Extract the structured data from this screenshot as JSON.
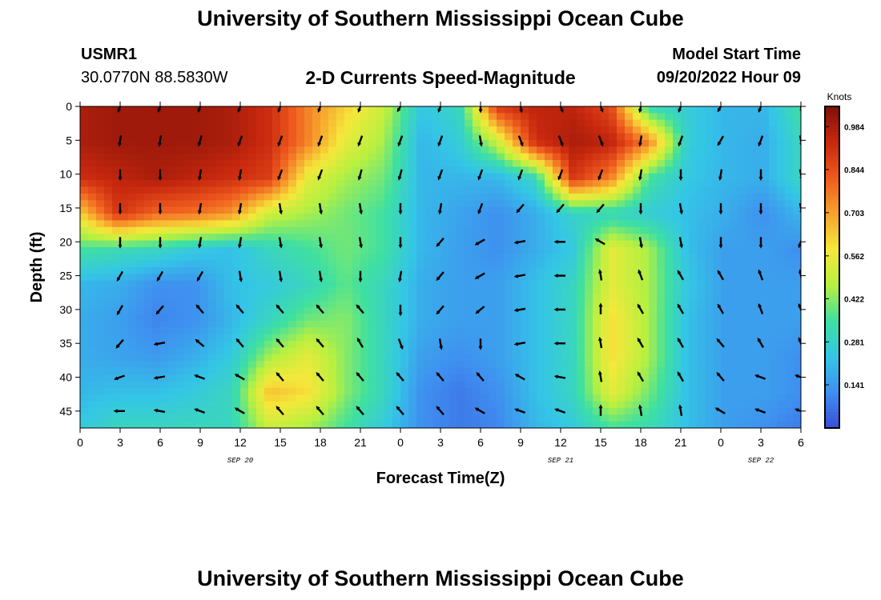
{
  "header": {
    "title": "University of Southern Mississippi Ocean Cube",
    "station_id": "USMR1",
    "station_coords": "30.0770N  88.5830W",
    "plot_title": "2-D Currents Speed-Magnitude",
    "model_start_label": "Model Start Time",
    "model_start_value": "09/20/2022 Hour 09"
  },
  "footer": {
    "title": "University of Southern Mississippi Ocean Cube"
  },
  "chart_data": {
    "type": "heatmap",
    "xlabel": "Forecast Time(Z)",
    "ylabel": "Depth (ft)",
    "colorbar_label": "Knots",
    "x_tick_labels": [
      "0",
      "3",
      "6",
      "9",
      "12",
      "15",
      "18",
      "21",
      "0",
      "3",
      "6",
      "9",
      "12",
      "15",
      "18",
      "21",
      "0",
      "3",
      "6"
    ],
    "date_labels": [
      {
        "text": "SEP 20",
        "at_tick": 4
      },
      {
        "text": "SEP 21",
        "at_tick": 12
      },
      {
        "text": "SEP 22",
        "at_tick": 17
      }
    ],
    "y_ticks": [
      0,
      5,
      10,
      15,
      20,
      25,
      30,
      35,
      40,
      45
    ],
    "ylim": [
      0,
      47.5
    ],
    "colorbar_ticks": [
      0.141,
      0.281,
      0.422,
      0.562,
      0.703,
      0.844,
      0.984
    ],
    "colorbar_range": [
      0.0,
      1.05
    ],
    "colormap": [
      "#3a4fd8",
      "#3f8ff0",
      "#34c6e6",
      "#3fe0a0",
      "#b8f040",
      "#f5e83a",
      "#f7a22e",
      "#ee5a1e",
      "#c8280e",
      "#801008"
    ],
    "grid": false,
    "vector_depths": [
      0,
      5,
      10,
      15,
      20,
      25,
      30,
      35,
      40,
      45
    ],
    "vector_times": [
      1,
      2,
      3,
      4,
      5,
      6,
      7,
      8,
      9,
      10,
      11,
      12,
      13,
      14,
      15,
      16,
      17,
      18
    ],
    "speed_grid": [
      [
        0.98,
        1.0,
        1.0,
        1.0,
        0.98,
        0.92,
        0.75,
        0.62,
        0.5,
        0.24,
        0.3,
        0.9,
        0.95,
        0.95,
        0.85,
        0.3,
        0.26,
        0.2,
        0.2,
        0.35
      ],
      [
        0.98,
        1.0,
        1.0,
        1.0,
        0.98,
        0.92,
        0.75,
        0.55,
        0.45,
        0.2,
        0.26,
        0.5,
        0.92,
        0.98,
        0.95,
        0.75,
        0.26,
        0.2,
        0.18,
        0.3
      ],
      [
        0.92,
        0.95,
        0.98,
        0.95,
        0.92,
        0.88,
        0.55,
        0.45,
        0.4,
        0.2,
        0.2,
        0.2,
        0.3,
        0.9,
        0.75,
        0.35,
        0.24,
        0.2,
        0.18,
        0.3
      ],
      [
        0.62,
        0.9,
        0.8,
        0.78,
        0.72,
        0.5,
        0.45,
        0.4,
        0.35,
        0.2,
        0.16,
        0.12,
        0.18,
        0.28,
        0.3,
        0.26,
        0.22,
        0.18,
        0.12,
        0.2
      ],
      [
        0.35,
        0.32,
        0.3,
        0.25,
        0.22,
        0.3,
        0.35,
        0.4,
        0.35,
        0.2,
        0.15,
        0.12,
        0.18,
        0.25,
        0.55,
        0.45,
        0.22,
        0.15,
        0.15,
        0.12
      ],
      [
        0.2,
        0.18,
        0.12,
        0.12,
        0.22,
        0.25,
        0.3,
        0.38,
        0.3,
        0.18,
        0.15,
        0.15,
        0.22,
        0.3,
        0.55,
        0.45,
        0.24,
        0.15,
        0.15,
        0.15
      ],
      [
        0.18,
        0.15,
        0.1,
        0.12,
        0.2,
        0.3,
        0.4,
        0.42,
        0.3,
        0.18,
        0.15,
        0.15,
        0.22,
        0.3,
        0.6,
        0.45,
        0.22,
        0.15,
        0.15,
        0.15
      ],
      [
        0.18,
        0.16,
        0.14,
        0.18,
        0.25,
        0.45,
        0.55,
        0.42,
        0.3,
        0.15,
        0.12,
        0.15,
        0.22,
        0.3,
        0.6,
        0.45,
        0.22,
        0.15,
        0.15,
        0.12
      ],
      [
        0.2,
        0.22,
        0.22,
        0.25,
        0.3,
        0.65,
        0.6,
        0.42,
        0.3,
        0.12,
        0.08,
        0.12,
        0.22,
        0.3,
        0.55,
        0.4,
        0.22,
        0.15,
        0.15,
        0.12
      ],
      [
        0.25,
        0.3,
        0.3,
        0.3,
        0.3,
        0.5,
        0.45,
        0.35,
        0.25,
        0.12,
        0.08,
        0.1,
        0.2,
        0.25,
        0.35,
        0.32,
        0.22,
        0.15,
        0.12,
        0.08
      ]
    ],
    "direction_grid": [
      [
        200,
        200,
        200,
        200,
        200,
        200,
        200,
        210,
        200,
        180,
        170,
        160,
        160,
        190,
        200,
        210,
        200,
        170,
        160
      ],
      [
        190,
        190,
        195,
        200,
        200,
        200,
        200,
        200,
        200,
        170,
        160,
        160,
        160,
        190,
        200,
        210,
        200,
        170,
        160
      ],
      [
        180,
        180,
        190,
        190,
        200,
        200,
        195,
        195,
        200,
        200,
        200,
        200,
        200,
        190,
        180,
        190,
        180,
        170,
        180
      ],
      [
        180,
        180,
        190,
        190,
        170,
        170,
        170,
        180,
        190,
        200,
        220,
        220,
        220,
        180,
        170,
        180,
        180,
        170,
        160
      ],
      [
        180,
        180,
        190,
        190,
        170,
        170,
        170,
        180,
        220,
        240,
        260,
        270,
        300,
        170,
        170,
        180,
        180,
        200,
        20
      ],
      [
        210,
        210,
        210,
        170,
        170,
        170,
        180,
        190,
        220,
        240,
        260,
        270,
        350,
        340,
        330,
        330,
        340,
        350,
        0
      ],
      [
        210,
        220,
        320,
        320,
        320,
        320,
        320,
        180,
        220,
        230,
        260,
        270,
        0,
        330,
        330,
        330,
        340,
        340,
        340
      ],
      [
        220,
        260,
        310,
        320,
        320,
        320,
        330,
        160,
        170,
        180,
        260,
        270,
        350,
        330,
        330,
        320,
        330,
        340,
        340
      ],
      [
        250,
        260,
        290,
        300,
        320,
        320,
        320,
        320,
        320,
        320,
        300,
        280,
        350,
        330,
        330,
        320,
        290,
        290,
        320
      ],
      [
        270,
        280,
        290,
        300,
        320,
        320,
        320,
        320,
        320,
        300,
        290,
        290,
        0,
        350,
        350,
        300,
        290,
        290,
        290
      ]
    ]
  }
}
